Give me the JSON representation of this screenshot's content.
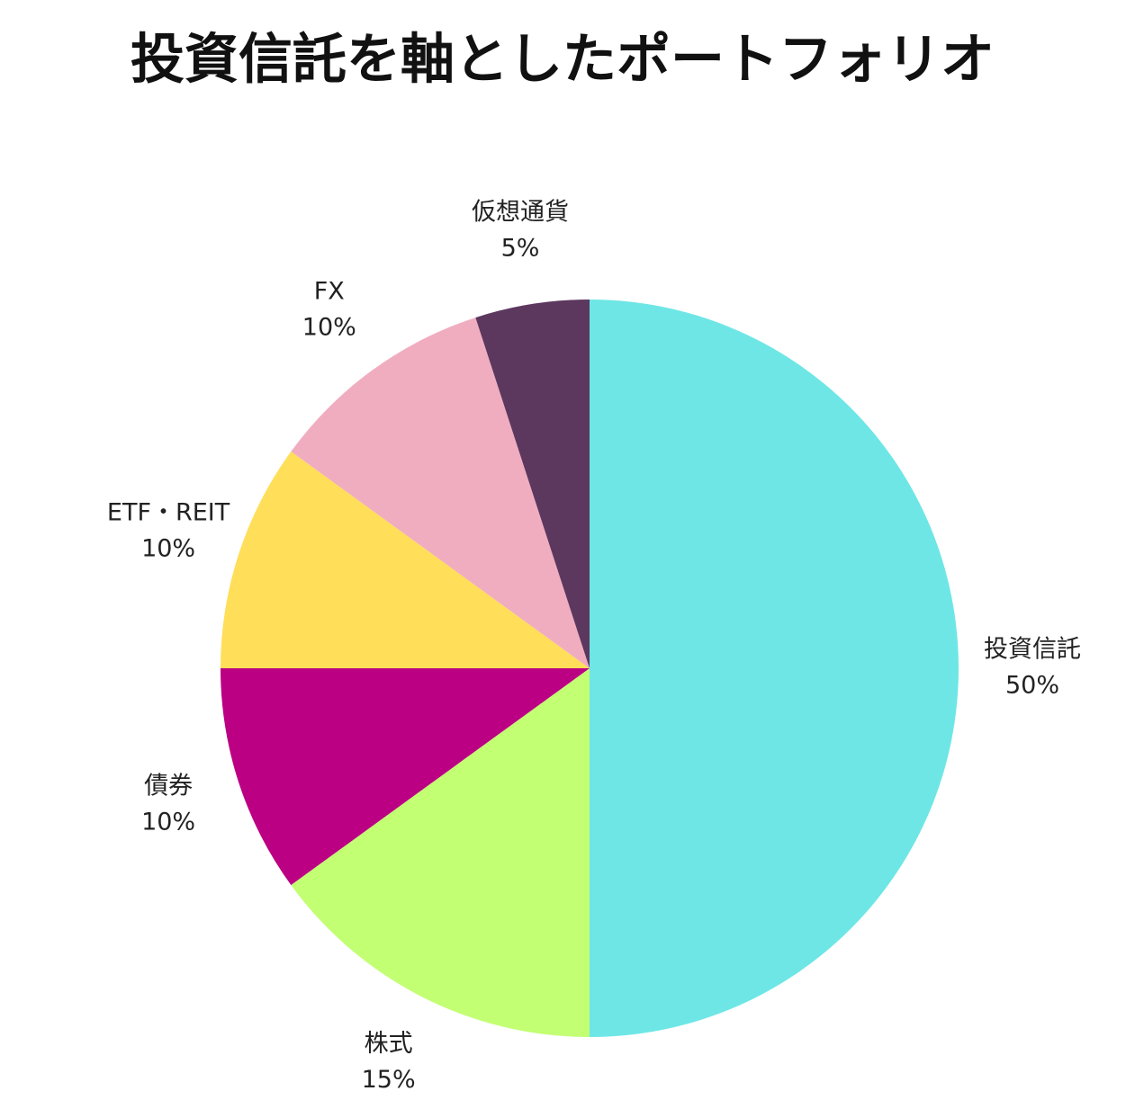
{
  "chart_data": {
    "type": "pie",
    "title": "投資信託を軸としたポートフォリオ",
    "categories": [
      "投資信託",
      "株式",
      "債券",
      "ETF・REIT",
      "FX",
      "仮想通貨"
    ],
    "values": [
      50,
      15,
      10,
      10,
      10,
      5
    ],
    "value_labels": [
      "50%",
      "15%",
      "10%",
      "10%",
      "10%",
      "5%"
    ],
    "colors": [
      "#6ee6e6",
      "#c2ff73",
      "#bb0083",
      "#ffde59",
      "#f1adc0",
      "#5c385f"
    ]
  }
}
